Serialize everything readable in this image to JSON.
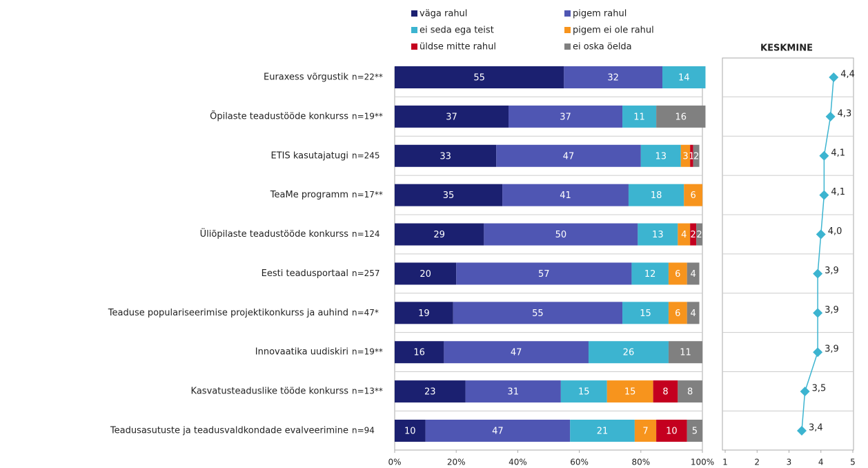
{
  "chart_data": [
    {
      "type": "bar",
      "stacked": true,
      "orientation": "horizontal",
      "categories": [
        "Euraxess võrgustik",
        "Õpilaste teadustööde konkurss",
        "ETIS kasutajatugi",
        "TeaMe programm",
        "Üliõpilaste teadustööde konkurss",
        "Eesti teadusportaal",
        "Teaduse populariseerimise projektikonkurss ja auhind",
        "Innovaatika uudiskiri",
        "Kasvatusteaduslike tööde konkurss",
        "Teadusasutuste ja teadusvaldkondade evalveerimine"
      ],
      "n_labels": [
        "n=22**",
        "n=19**",
        "n=245",
        "n=17**",
        "n=124",
        "n=257",
        "n=47*",
        "n=19**",
        "n=13**",
        "n=94"
      ],
      "series": [
        {
          "name": "väga rahul",
          "color": "#1b2070",
          "values": [
            55,
            37,
            33,
            35,
            29,
            20,
            19,
            16,
            23,
            10
          ]
        },
        {
          "name": "pigem rahul",
          "color": "#4f56b3",
          "values": [
            32,
            37,
            47,
            41,
            50,
            57,
            55,
            47,
            31,
            47
          ]
        },
        {
          "name": "ei seda ega teist",
          "color": "#3cb4d0",
          "values": [
            14,
            11,
            13,
            18,
            13,
            12,
            15,
            26,
            15,
            21
          ]
        },
        {
          "name": "pigem ei ole rahul",
          "color": "#f7941d",
          "values": [
            null,
            null,
            3,
            6,
            4,
            6,
            6,
            null,
            15,
            7
          ]
        },
        {
          "name": "üldse mitte rahul",
          "color": "#c4001f",
          "values": [
            null,
            null,
            1,
            null,
            2,
            null,
            null,
            null,
            8,
            10
          ]
        },
        {
          "name": "ei oska öelda",
          "color": "#808080",
          "values": [
            null,
            16,
            2,
            null,
            2,
            4,
            4,
            11,
            8,
            5
          ]
        }
      ],
      "xlim": [
        0,
        100
      ],
      "xticks": [
        {
          "value": 0,
          "label": "0%"
        },
        {
          "value": 20,
          "label": "20%"
        },
        {
          "value": 40,
          "label": "40%"
        },
        {
          "value": 60,
          "label": "60%"
        },
        {
          "value": 80,
          "label": "80%"
        },
        {
          "value": 100,
          "label": "100%"
        }
      ]
    },
    {
      "type": "line",
      "title": "KESKMINE",
      "color": "#3cb4d0",
      "values": [
        4.4,
        4.3,
        4.1,
        4.1,
        4.0,
        3.9,
        3.9,
        3.9,
        3.5,
        3.4
      ],
      "value_labels": [
        "4,4",
        "4,3",
        "4,1",
        "4,1",
        "4,0",
        "3,9",
        "3,9",
        "3,9",
        "3,5",
        "3,4"
      ],
      "xlim": [
        1,
        5
      ],
      "xticks": [
        1,
        2,
        3,
        4,
        5
      ]
    }
  ]
}
